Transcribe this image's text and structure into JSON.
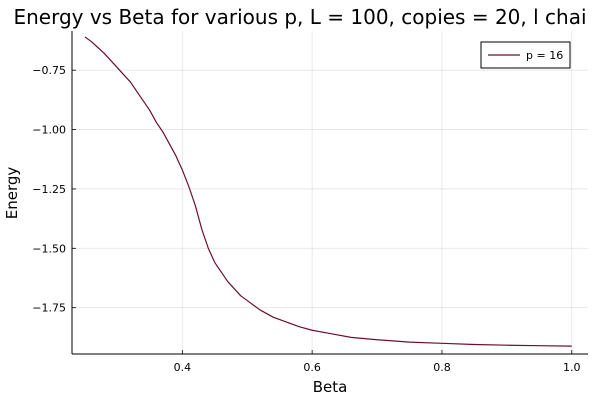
{
  "chart_data": {
    "type": "line",
    "title": "Energy vs Beta for various p, L = 100, copies = 20, l chai",
    "xlabel": "Beta",
    "ylabel": "Energy",
    "xlim": [
      0.23,
      1.025
    ],
    "ylim": [
      -1.945,
      -0.585
    ],
    "xticks": [
      0.4,
      0.6,
      0.8,
      1.0
    ],
    "xtick_labels": [
      "0.4",
      "0.6",
      "0.8",
      "1.0"
    ],
    "yticks": [
      -0.75,
      -1.0,
      -1.25,
      -1.5,
      -1.75
    ],
    "ytick_labels": [
      "−0.75",
      "−1.00",
      "−1.25",
      "−1.50",
      "−1.75"
    ],
    "grid": true,
    "legend_position": "top-right",
    "series": [
      {
        "name": "p = 16",
        "color": "#6b0f2e",
        "x": [
          0.25,
          0.26,
          0.27,
          0.28,
          0.29,
          0.3,
          0.31,
          0.32,
          0.33,
          0.34,
          0.35,
          0.36,
          0.37,
          0.38,
          0.39,
          0.4,
          0.41,
          0.42,
          0.43,
          0.44,
          0.45,
          0.46,
          0.47,
          0.48,
          0.49,
          0.5,
          0.52,
          0.54,
          0.56,
          0.58,
          0.6,
          0.63,
          0.66,
          0.7,
          0.75,
          0.8,
          0.85,
          0.9,
          0.95,
          1.0
        ],
        "y": [
          -0.61,
          -0.63,
          -0.655,
          -0.68,
          -0.71,
          -0.74,
          -0.77,
          -0.8,
          -0.84,
          -0.88,
          -0.92,
          -0.97,
          -1.01,
          -1.06,
          -1.11,
          -1.17,
          -1.24,
          -1.32,
          -1.42,
          -1.5,
          -1.56,
          -1.6,
          -1.64,
          -1.67,
          -1.7,
          -1.72,
          -1.76,
          -1.79,
          -1.81,
          -1.83,
          -1.845,
          -1.86,
          -1.875,
          -1.885,
          -1.895,
          -1.9,
          -1.905,
          -1.908,
          -1.91,
          -1.912
        ]
      }
    ]
  }
}
